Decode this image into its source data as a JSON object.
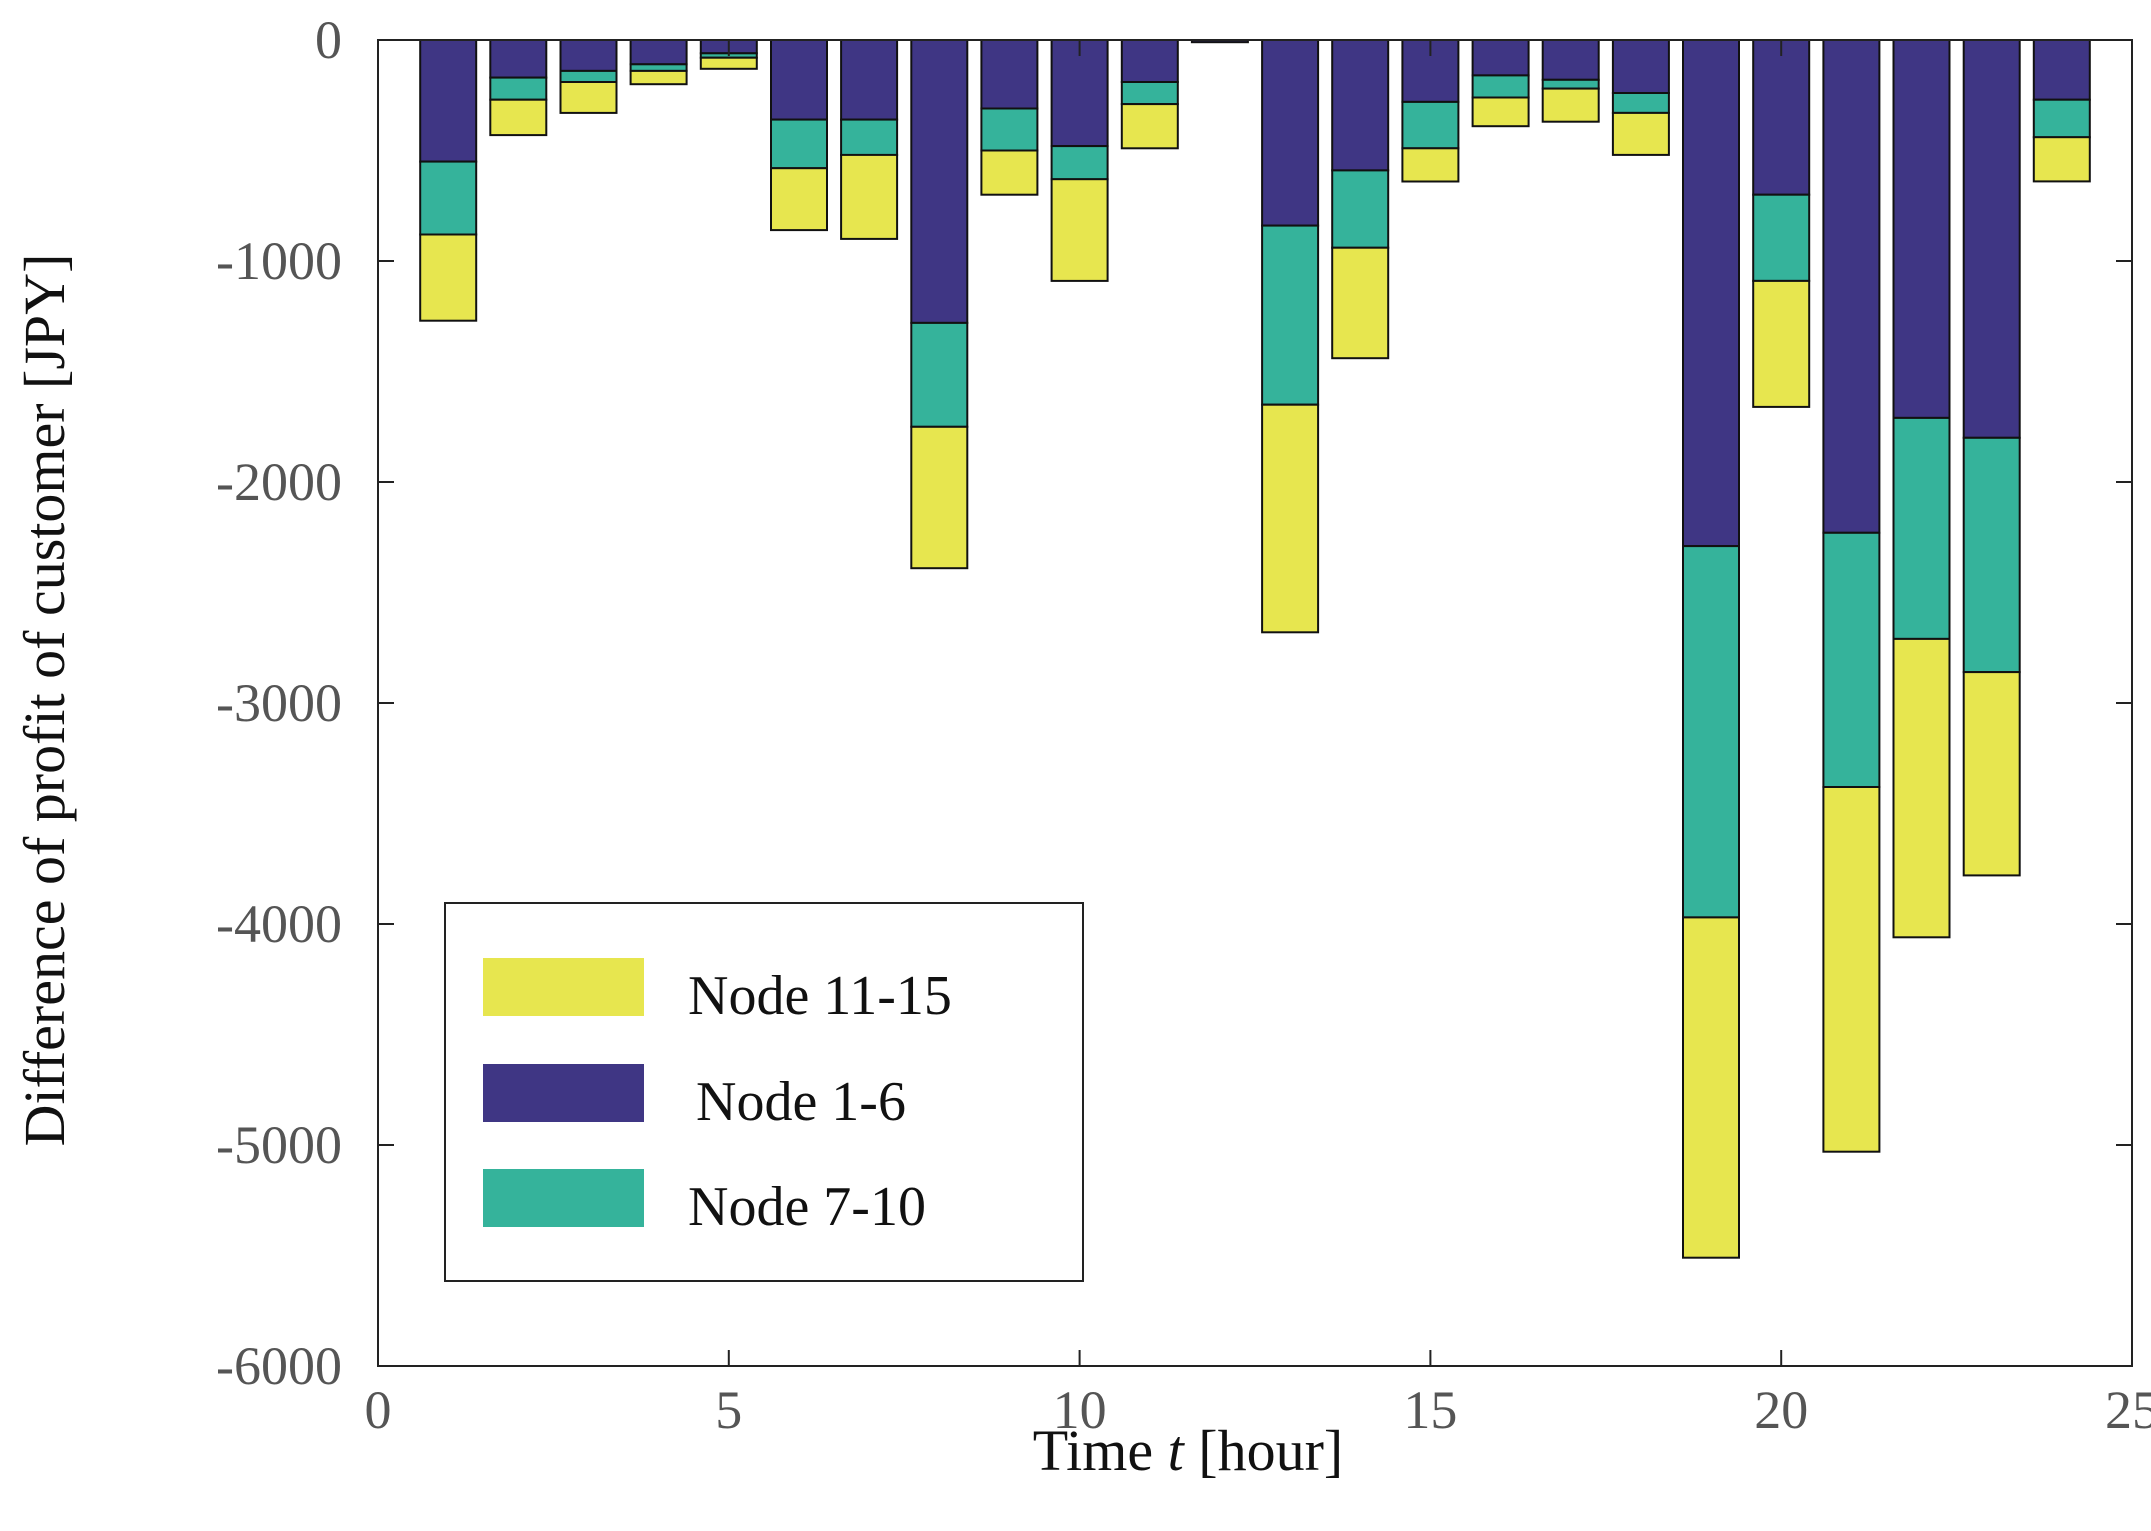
{
  "chart_data": {
    "type": "bar",
    "stacked": true,
    "title": "",
    "xlabel": "Time t [hour]",
    "xlabel_parts": {
      "before": "Time ",
      "var": "t",
      "after": " [hour]"
    },
    "ylabel": "Difference of profit of customer [JPY]",
    "xlim": [
      0,
      25
    ],
    "ylim": [
      -6000,
      0
    ],
    "xticks": [
      0,
      5,
      10,
      15,
      20,
      25
    ],
    "yticks": [
      0,
      -1000,
      -2000,
      -3000,
      -4000,
      -5000,
      -6000
    ],
    "x": [
      1,
      2,
      3,
      4,
      5,
      6,
      7,
      8,
      9,
      10,
      11,
      12,
      13,
      14,
      15,
      16,
      17,
      18,
      19,
      20,
      21,
      22,
      23,
      24
    ],
    "series": [
      {
        "name": "Node 1-6",
        "color": "#3f3684",
        "values": [
          -550,
          -170,
          -140,
          -110,
          -60,
          -360,
          -360,
          -1280,
          -310,
          -480,
          -190,
          -10,
          -840,
          -590,
          -280,
          -160,
          -180,
          -240,
          -2290,
          -700,
          -2230,
          -1710,
          -1800,
          -270
        ]
      },
      {
        "name": "Node 7-10",
        "color": "#35b39b",
        "values": [
          -330,
          -100,
          -50,
          -30,
          -20,
          -220,
          -160,
          -470,
          -190,
          -150,
          -100,
          0,
          -810,
          -350,
          -210,
          -100,
          -40,
          -90,
          -1680,
          -390,
          -1150,
          -1000,
          -1060,
          -170
        ]
      },
      {
        "name": "Node 11-15",
        "color": "#e7e64f",
        "values": [
          -390,
          -160,
          -140,
          -60,
          -50,
          -280,
          -380,
          -640,
          -200,
          -460,
          -200,
          0,
          -1030,
          -500,
          -150,
          -130,
          -150,
          -190,
          -1540,
          -570,
          -1650,
          -1350,
          -920,
          -200
        ]
      }
    ],
    "legend": {
      "position": "lower-left",
      "entries": [
        {
          "label": "Node 11-15",
          "color": "#e7e64f"
        },
        {
          "label": "Node 1-6",
          "color": "#3f3684"
        },
        {
          "label": "Node 7-10",
          "color": "#35b39b"
        }
      ]
    },
    "grid": false
  }
}
